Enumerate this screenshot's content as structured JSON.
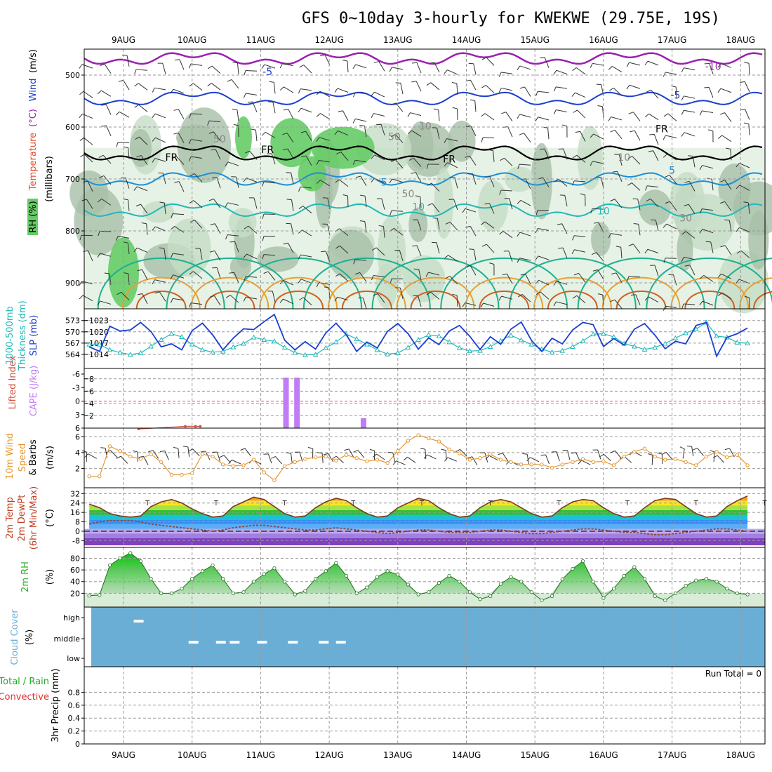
{
  "title": "GFS 0~10day 3-hourly for KWEKWE (29.75E, 19S)",
  "dates": [
    "9AUG",
    "10AUG",
    "11AUG",
    "12AUG",
    "13AUG",
    "14AUG",
    "15AUG",
    "16AUG",
    "17AUG",
    "18AUG"
  ],
  "colors": {
    "wind_barb": "#333333",
    "rh_light": "#e6f2e6",
    "rh_mid": "#c6dcc6",
    "rh_dark": "#a8bfa8",
    "rh_green": "#66cc66",
    "slp": "#1a3fd0",
    "thickness": "#22b8b8",
    "cape": "#c07cf5",
    "lifted": "#d05040",
    "wind_speed": "#e89830",
    "dewpoint": "#8a4a3a",
    "rh2m": "#30b030",
    "cloud": "#6aaed6",
    "fr_line": "#000000"
  },
  "chart_data": [
    {
      "type": "contour",
      "panel": "upper_air",
      "ylabel_parts": [
        "RH (%)",
        "Temperature",
        "(°C)",
        "Wind",
        "(m/s)",
        "(millibars)"
      ],
      "y_ticks": [
        500,
        600,
        700,
        800,
        900
      ],
      "ylim": [
        450,
        950
      ],
      "contour_labels": [
        {
          "text": "-5",
          "t": 2.1,
          "p": 500,
          "color": "#1a3fd0"
        },
        {
          "text": "-10",
          "t": 8.6,
          "p": 490,
          "color": "#9a20b0"
        },
        {
          "text": "-5",
          "t": 8.05,
          "p": 545,
          "color": "#1a3fd0"
        },
        {
          "text": "5",
          "t": 8.0,
          "p": 690,
          "color": "#1a8fd8"
        },
        {
          "text": "5",
          "t": 3.8,
          "p": 713,
          "color": "#1a8fd8"
        },
        {
          "text": "10",
          "t": 4.3,
          "p": 760,
          "color": "#22b8b8"
        },
        {
          "text": "10",
          "t": 7.0,
          "p": 768,
          "color": "#22b8b8"
        },
        {
          "text": "FR",
          "t": 0.7,
          "p": 665,
          "color": "#000000"
        },
        {
          "text": "FR",
          "t": 2.1,
          "p": 650,
          "color": "#000000"
        },
        {
          "text": "FR",
          "t": 4.75,
          "p": 668,
          "color": "#000000"
        },
        {
          "text": "FR",
          "t": 7.85,
          "p": 610,
          "color": "#000000"
        },
        {
          "text": "50",
          "t": 1.4,
          "p": 630,
          "color": "#888888"
        },
        {
          "text": "50",
          "t": 3.95,
          "p": 625,
          "color": "#888888"
        },
        {
          "text": "10",
          "t": 4.4,
          "p": 605,
          "color": "#888888"
        },
        {
          "text": "10",
          "t": 7.3,
          "p": 665,
          "color": "#888888"
        },
        {
          "text": "50",
          "t": 4.15,
          "p": 735,
          "color": "#888888"
        },
        {
          "text": "30",
          "t": 8.2,
          "p": 782,
          "color": "#888888"
        }
      ]
    },
    {
      "type": "line",
      "panel": "slp_thickness",
      "ylabel_left": [
        "1000-500mb",
        "Thickness (dm)"
      ],
      "ylabel_right": "SLP (mb)",
      "y_ticks_left": [
        "573",
        "570",
        "567",
        "564"
      ],
      "y_ticks_right": [
        "1023",
        "1020",
        "1017",
        "1014"
      ],
      "series": [
        {
          "name": "SLP (mb)",
          "values": [
            1016,
            1014.8,
            1021.5,
            1020.2,
            1020.5,
            1022.5,
            1020.1,
            1016,
            1016.8,
            1015.2,
            1020.3,
            1022.3,
            1019.2,
            1015.2,
            1018.3,
            1020.8,
            1020.6,
            1022.7,
            1024.6,
            1017.8,
            1015.2,
            1017.4,
            1015.4,
            1019.7,
            1022.3,
            1019.2,
            1014.8,
            1017.3,
            1015.7,
            1020.1,
            1022.2,
            1019.5,
            1015.4,
            1018.4,
            1016.6,
            1020.2,
            1021.7,
            1018.8,
            1015.3,
            1018.7,
            1016.7,
            1020.7,
            1022.6,
            1017.7,
            1014.8,
            1018.3,
            1016.8,
            1020.5,
            1022.5,
            1021.9,
            1016.1,
            1018.2,
            1016.5,
            1020.7,
            1022.2,
            1019.1,
            1015.5,
            1017.5,
            1016.8,
            1021.7,
            1022.5,
            1013.5,
            1018.5,
            1019.5,
            1021
          ]
        },
        {
          "name": "Thickness (dm)",
          "values": [
            567,
            567,
            565.6,
            564.9,
            564.4,
            564.8,
            566.5,
            568.2,
            569.7,
            568.9,
            567,
            565.6,
            565,
            565.2,
            566.3,
            567.2,
            568.8,
            568.2,
            567.8,
            566.2,
            564.9,
            564.3,
            564.4,
            566.1,
            567.6,
            569.6,
            568.4,
            567,
            565.6,
            564.5,
            564.8,
            566.2,
            568.2,
            569.4,
            569.1,
            567.6,
            566.1,
            565.3,
            565.4,
            566.4,
            567.9,
            569.3,
            568.1,
            567,
            565.8,
            565,
            565.4,
            566.4,
            567.9,
            569.6,
            569.7,
            568.9,
            567.2,
            566.5,
            565.7,
            566.2,
            567.2,
            568.6,
            569.9,
            570.9,
            572.6,
            569.1,
            568.8,
            567.5,
            567.3
          ]
        }
      ]
    },
    {
      "type": "bar",
      "panel": "cape_li",
      "ylabel_left": "Lifted Index",
      "ylabel_right": "CAPE (J/kg)",
      "y_ticks_left": [
        "-6",
        "-3",
        "0",
        "3",
        "6"
      ],
      "y_ticks_right": [
        "8",
        "6",
        "4",
        "2"
      ],
      "cape_bars": [
        {
          "t": 2.37,
          "value": 8.2
        },
        {
          "t": 2.53,
          "value": 8.2
        },
        {
          "t": 3.5,
          "value": 1.6
        }
      ],
      "lifted_index": [
        {
          "t": 0.22,
          "value": 6.2
        },
        {
          "t": 0.9,
          "value": 5.6
        },
        {
          "t": 1.05,
          "value": 5.6
        },
        {
          "t": 1.12,
          "value": 5.6
        }
      ]
    },
    {
      "type": "line",
      "panel": "wind10m",
      "ylabel": [
        "10m Wind",
        "Speed",
        "& Barbs",
        "(m/s)"
      ],
      "y_ticks": [
        "6",
        "4",
        "2"
      ],
      "ylim": [
        0,
        7
      ],
      "series": [
        {
          "name": "10m Wind Speed",
          "values": [
            1,
            1,
            4.8,
            4.2,
            3.5,
            3.2,
            3.8,
            2.8,
            1.2,
            1.2,
            1.4,
            3.8,
            3.5,
            2.5,
            2.3,
            2.4,
            3.1,
            1.5,
            0.5,
            2.3,
            2.8,
            3.2,
            3.4,
            3.5,
            3,
            3.7,
            3.3,
            2.9,
            3.1,
            2.7,
            4.2,
            5.5,
            6.2,
            5.8,
            5.4,
            4.4,
            3.9,
            3.1,
            3.3,
            3.8,
            3.1,
            2.8,
            2.5,
            2.5,
            2.5,
            2.1,
            2.5,
            2.8,
            3.2,
            2.8,
            2.9,
            2.4,
            3.5,
            4.1,
            4.5,
            3.5,
            3.1,
            3.2,
            2.8,
            2.4,
            3.5,
            4.1,
            3.4,
            3.7,
            2.4
          ]
        }
      ]
    },
    {
      "type": "area",
      "panel": "temp2m",
      "ylabel": [
        "2m Temp",
        "2m DewPt",
        "(6hr Min/Max)",
        "(°C)"
      ],
      "y_ticks": [
        "32",
        "24",
        "16",
        "8",
        "0",
        "-8"
      ],
      "ylim": [
        -14,
        34
      ],
      "series": [
        {
          "name": "2m Temp",
          "values": [
            23,
            20,
            15,
            13,
            12,
            13,
            21,
            25,
            27,
            24,
            19,
            15,
            12,
            13,
            21,
            25,
            29,
            27,
            21,
            15,
            12,
            13,
            20,
            25,
            28,
            26,
            20,
            15,
            12,
            13,
            20,
            24,
            28,
            26,
            20,
            15,
            12,
            13,
            20,
            25,
            27,
            25,
            20,
            15,
            12,
            13,
            20,
            25,
            27,
            26,
            20,
            15,
            12,
            13,
            20,
            26,
            28,
            27,
            21,
            15,
            12,
            13,
            21,
            26,
            30
          ]
        },
        {
          "name": "2m DewPt",
          "values": [
            6,
            8,
            9,
            9,
            9,
            8,
            6,
            5,
            4,
            3,
            2,
            1,
            0,
            1,
            3,
            4,
            5,
            5,
            4,
            3,
            2,
            1,
            1,
            2,
            3,
            2,
            1,
            0,
            -1,
            -2,
            -1,
            0,
            1,
            1,
            0,
            -1,
            -1,
            -1,
            0,
            1,
            1,
            0,
            -1,
            -2,
            -2,
            -1,
            0,
            1,
            2,
            2,
            1,
            0,
            -1,
            -1,
            -2,
            -3,
            -3,
            -2,
            -1,
            0,
            1,
            2,
            2,
            1,
            0
          ]
        }
      ]
    },
    {
      "type": "area",
      "panel": "rh2m",
      "ylabel": [
        "2m RH",
        "(%)"
      ],
      "y_ticks": [
        "80",
        "60",
        "40",
        "20"
      ],
      "ylim": [
        0,
        95
      ],
      "series": [
        {
          "name": "2m RH",
          "values": [
            16,
            17,
            68,
            80,
            89,
            75,
            45,
            20,
            20,
            28,
            45,
            58,
            68,
            45,
            20,
            22,
            40,
            53,
            63,
            40,
            18,
            24,
            45,
            58,
            72,
            50,
            20,
            30,
            48,
            58,
            52,
            35,
            18,
            22,
            38,
            50,
            40,
            22,
            10,
            15,
            36,
            48,
            40,
            22,
            8,
            15,
            44,
            62,
            75,
            40,
            12,
            28,
            50,
            65,
            45,
            15,
            8,
            20,
            33,
            42,
            45,
            40,
            28,
            20,
            18
          ]
        }
      ]
    },
    {
      "type": "bar",
      "panel": "cloud_cover",
      "ylabel": [
        "Cloud Cover",
        "(%)"
      ],
      "y_ticks": [
        "high",
        "middle",
        "low"
      ],
      "gaps": [
        {
          "t": 0.2,
          "level": "high"
        },
        {
          "t": 1.0,
          "level": "middle"
        },
        {
          "t": 1.4,
          "level": "middle"
        },
        {
          "t": 1.6,
          "level": "middle"
        },
        {
          "t": 2.0,
          "level": "middle"
        },
        {
          "t": 2.45,
          "level": "middle"
        },
        {
          "t": 2.9,
          "level": "middle"
        },
        {
          "t": 3.15,
          "level": "middle"
        }
      ]
    },
    {
      "type": "bar",
      "panel": "precip",
      "ylabel": [
        "3hr Precip (mm)"
      ],
      "legend": [
        "Total / Rain",
        "Convective"
      ],
      "run_total": "Run Total = 0",
      "y_ticks": [
        "0",
        "0.2",
        "0.4",
        "0.6",
        "0.8"
      ],
      "ylim": [
        0,
        1
      ],
      "values": []
    }
  ]
}
